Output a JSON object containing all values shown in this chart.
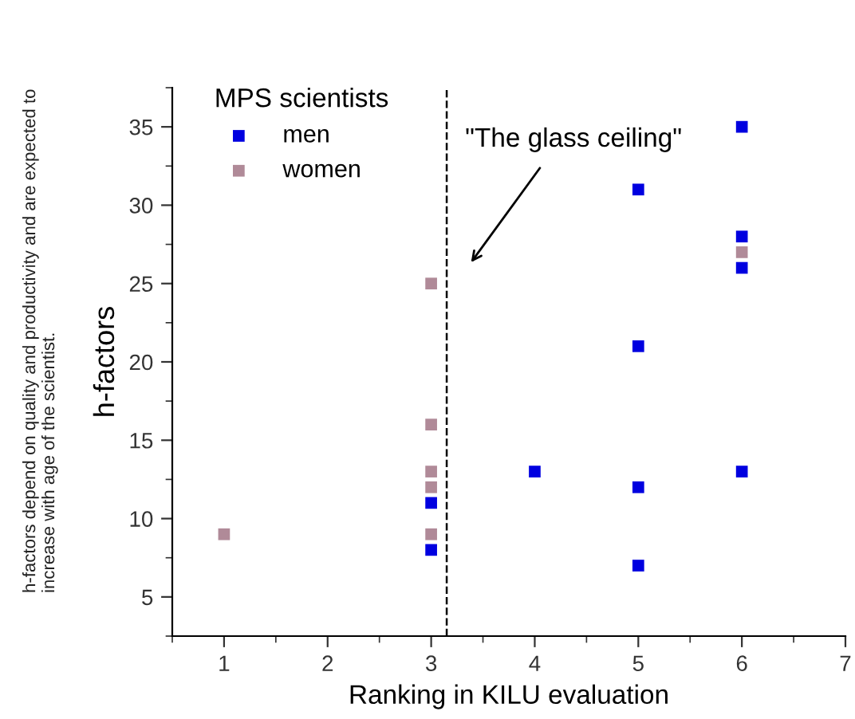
{
  "chart_data": {
    "type": "scatter",
    "xlabel": "Ranking in KILU evaluation",
    "ylabel": "h-factors",
    "legend_title": "MPS scientists",
    "legend": "top left",
    "marker": "square",
    "grid": false,
    "xlim": [
      0.5,
      7
    ],
    "xticks": [
      1,
      2,
      3,
      4,
      5,
      6,
      7
    ],
    "ylim": [
      2.5,
      37.5
    ],
    "yticks": [
      5,
      10,
      15,
      20,
      25,
      30,
      35
    ],
    "series": [
      {
        "name": "men",
        "color": "#0000e0",
        "x": [
          6,
          5,
          6,
          6,
          5,
          4,
          6,
          5,
          3,
          3,
          5
        ],
        "values": [
          35,
          31,
          28,
          26,
          21,
          13,
          13,
          12,
          11,
          8,
          7
        ]
      },
      {
        "name": "women",
        "color": "#b08a98",
        "x": [
          3,
          6,
          3,
          3,
          3,
          3,
          1
        ],
        "values": [
          25,
          27,
          16,
          13,
          12,
          9,
          9
        ]
      }
    ],
    "ref_lines": [
      {
        "axis": "x",
        "value": 3.15,
        "color": "#000000",
        "line_style": "dashed"
      }
    ],
    "annotations": [
      "\"The glass ceiling\"",
      "h-factors depend on quality and productivity and are expected to increase with age of the scientist."
    ]
  }
}
